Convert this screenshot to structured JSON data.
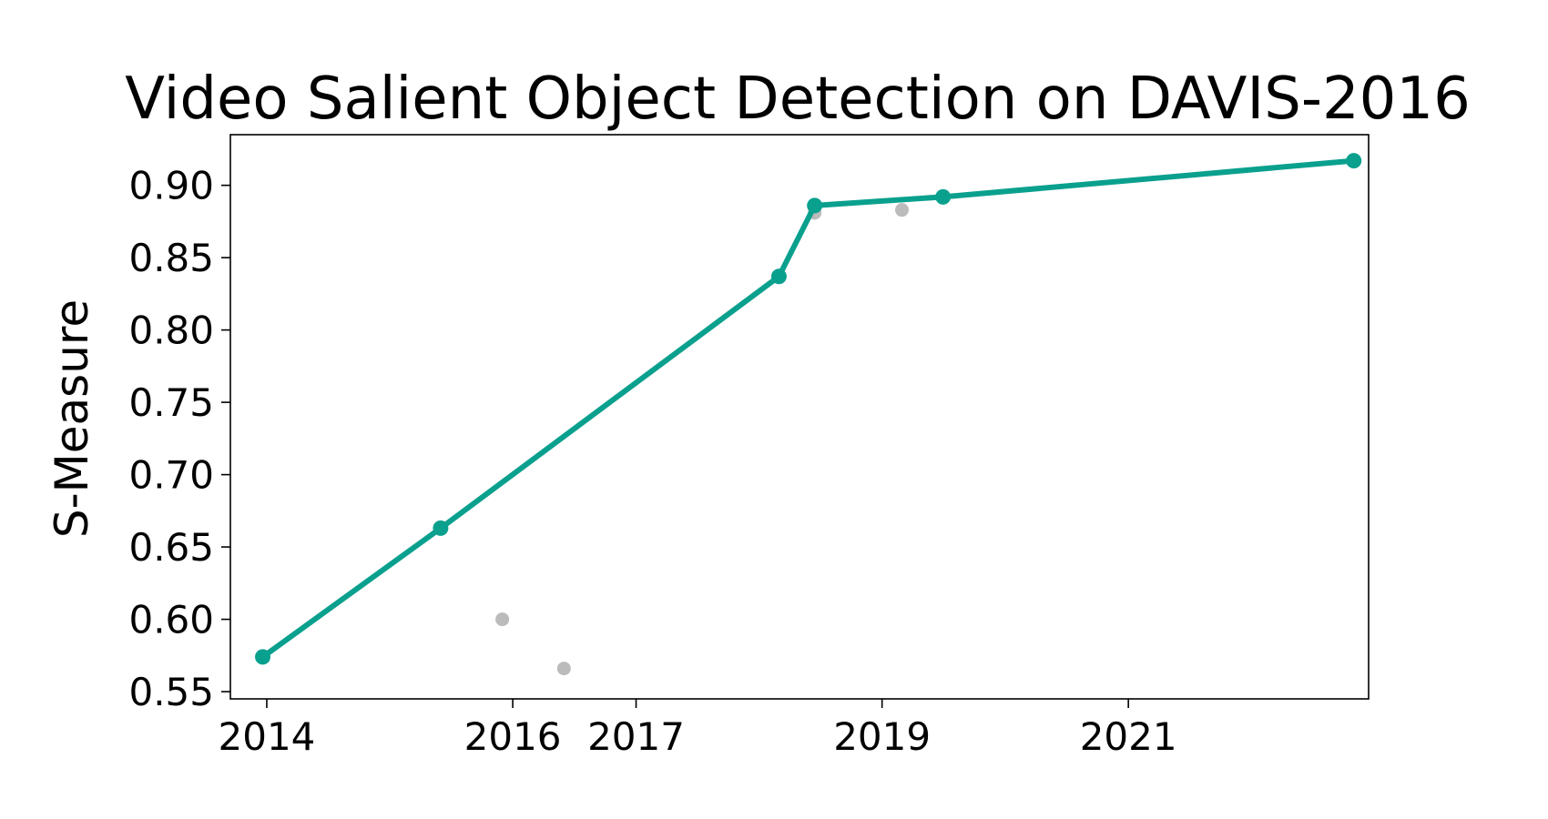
{
  "chart_data": {
    "type": "line",
    "title": "Video Salient Object Detection on DAVIS-2016",
    "xlabel": "",
    "ylabel": "S-Measure",
    "x_tick_labels": [
      "2014",
      "2016",
      "2017",
      "2019",
      "2021"
    ],
    "x_ticks": [
      "2014-01-01",
      "2016-01-01",
      "2017-01-01",
      "2019-01-01",
      "2021-01-01"
    ],
    "xlim": [
      "2013-09-15",
      "2022-12-15"
    ],
    "y_ticks": [
      0.55,
      0.6,
      0.65,
      0.7,
      0.75,
      0.8,
      0.85,
      0.9
    ],
    "y_tick_labels": [
      "0.55",
      "0.60",
      "0.65",
      "0.70",
      "0.75",
      "0.80",
      "0.85",
      "0.90"
    ],
    "ylim": [
      0.545,
      0.935
    ],
    "grid": false,
    "series": [
      {
        "role": "state-of-the-art",
        "color": "#0aa08e",
        "x": [
          "2013-12-20",
          "2015-06-01",
          "2018-03-01",
          "2018-06-15",
          "2019-07-01",
          "2022-11-01"
        ],
        "y": [
          0.574,
          0.663,
          0.837,
          0.886,
          0.892,
          0.917
        ]
      },
      {
        "role": "other-methods",
        "color": "#bbbbbb",
        "x": [
          "2015-12-01",
          "2016-06-01",
          "2018-06-15",
          "2019-03-01"
        ],
        "y": [
          0.6,
          0.566,
          0.881,
          0.883
        ]
      }
    ]
  }
}
